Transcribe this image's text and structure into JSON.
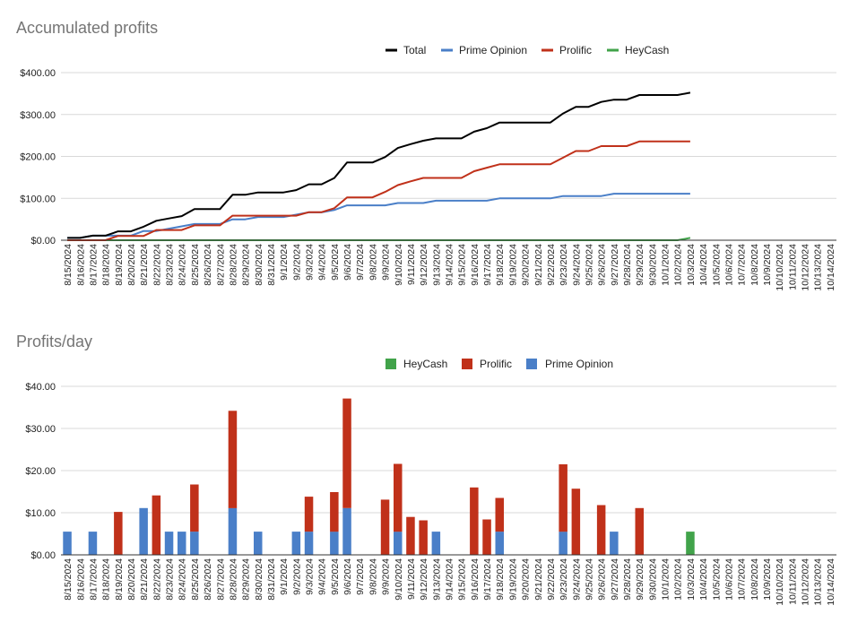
{
  "colors": {
    "total": "#000000",
    "prime": "#4a7fc8",
    "prolific": "#c0311a",
    "heycash": "#41a34a",
    "grid": "#d9d9d9",
    "axis": "#333333",
    "title": "#757575"
  },
  "dates": [
    "8/15/2024",
    "8/16/2024",
    "8/17/2024",
    "8/18/2024",
    "8/19/2024",
    "8/20/2024",
    "8/21/2024",
    "8/22/2024",
    "8/23/2024",
    "8/24/2024",
    "8/25/2024",
    "8/26/2024",
    "8/27/2024",
    "8/28/2024",
    "8/29/2024",
    "8/30/2024",
    "8/31/2024",
    "9/1/2024",
    "9/2/2024",
    "9/3/2024",
    "9/4/2024",
    "9/5/2024",
    "9/6/2024",
    "9/7/2024",
    "9/8/2024",
    "9/9/2024",
    "9/10/2024",
    "9/11/2024",
    "9/12/2024",
    "9/13/2024",
    "9/14/2024",
    "9/15/2024",
    "9/16/2024",
    "9/17/2024",
    "9/18/2024",
    "9/19/2024",
    "9/20/2024",
    "9/21/2024",
    "9/22/2024",
    "9/23/2024",
    "9/24/2024",
    "9/25/2024",
    "9/26/2024",
    "9/27/2024",
    "9/28/2024",
    "9/29/2024",
    "9/30/2024",
    "10/1/2024",
    "10/2/2024",
    "10/3/2024",
    "10/4/2024",
    "10/5/2024",
    "10/6/2024",
    "10/7/2024",
    "10/8/2024",
    "10/9/2024",
    "10/10/2024",
    "10/11/2024",
    "10/12/2024",
    "10/13/2024",
    "10/14/2024"
  ],
  "chart_data": [
    {
      "type": "line",
      "title": "Accumulated profits",
      "xlabel": "",
      "ylabel": "",
      "ylim": [
        0,
        400
      ],
      "yticks": [
        "$0.00",
        "$100.00",
        "$200.00",
        "$300.00",
        "$400.00"
      ],
      "grid": true,
      "legend_position": "top",
      "legend": [
        "Total",
        "Prime Opinion",
        "Prolific",
        "HeyCash"
      ],
      "series": [
        {
          "name": "Total",
          "color": "#000000",
          "values": [
            5.5,
            5.5,
            11,
            11,
            21.2,
            21.2,
            32.3,
            46.4,
            52,
            57.6,
            74.3,
            74.3,
            74.3,
            108.5,
            108.5,
            114.1,
            114.1,
            114.1,
            119.6,
            133.4,
            133.4,
            148.4,
            185.5,
            185.5,
            185.5,
            198.6,
            220.2,
            229.2,
            237.4,
            243,
            243,
            243,
            259,
            267.4,
            280.9,
            280.9,
            280.9,
            280.9,
            280.9,
            302.5,
            318.2,
            318.2,
            330,
            335.5,
            335.5,
            346.6,
            346.6,
            346.6,
            346.6,
            352.1
          ]
        },
        {
          "name": "Prime Opinion",
          "color": "#4a7fc8",
          "values": [
            5.5,
            5.5,
            11,
            11,
            11,
            11,
            22.1,
            22.1,
            27.7,
            33.2,
            38.8,
            38.8,
            38.8,
            49.9,
            49.9,
            55.4,
            55.4,
            55.4,
            61,
            66.5,
            66.5,
            72.1,
            83.2,
            83.2,
            83.2,
            83.2,
            88.7,
            88.7,
            88.7,
            94.3,
            94.3,
            94.3,
            94.3,
            94.3,
            99.8,
            99.8,
            99.8,
            99.8,
            99.8,
            105.4,
            105.4,
            105.4,
            105.4,
            111,
            111,
            111,
            111,
            111,
            111,
            111
          ]
        },
        {
          "name": "Prolific",
          "color": "#c0311a",
          "values": [
            0,
            0,
            0,
            0,
            10.2,
            10.2,
            10.2,
            24.3,
            24.3,
            24.3,
            35.5,
            35.5,
            35.5,
            58.6,
            58.6,
            58.6,
            58.6,
            58.6,
            58.6,
            66.9,
            66.9,
            76.3,
            102.3,
            102.3,
            102.3,
            115.4,
            131.5,
            140.5,
            148.7,
            148.7,
            148.7,
            148.7,
            164.7,
            173.1,
            181.1,
            181.1,
            181.1,
            181.1,
            181.1,
            197.1,
            212.8,
            212.8,
            224.6,
            224.6,
            224.6,
            235.7,
            235.7,
            235.7,
            235.7,
            235.7
          ]
        },
        {
          "name": "HeyCash",
          "color": "#41a34a",
          "values": [
            0,
            0,
            0,
            0,
            0,
            0,
            0,
            0,
            0,
            0,
            0,
            0,
            0,
            0,
            0,
            0,
            0,
            0,
            0,
            0,
            0,
            0,
            0,
            0,
            0,
            0,
            0,
            0,
            0,
            0,
            0,
            0,
            0,
            0,
            0,
            0,
            0,
            0,
            0,
            0,
            0,
            0,
            0,
            0,
            0,
            0,
            0,
            0,
            0,
            5.5
          ]
        }
      ]
    },
    {
      "type": "bar",
      "stacked": true,
      "title": "Profits/day",
      "xlabel": "",
      "ylabel": "",
      "ylim": [
        0,
        40
      ],
      "yticks": [
        "$0.00",
        "$10.00",
        "$20.00",
        "$30.00",
        "$40.00"
      ],
      "grid": true,
      "legend_position": "top",
      "legend": [
        "HeyCash",
        "Prolific",
        "Prime Opinion"
      ],
      "series": [
        {
          "name": "Prime Opinion",
          "color": "#4a7fc8",
          "values": [
            5.5,
            0,
            5.5,
            0,
            0,
            0,
            11.1,
            0,
            5.5,
            5.5,
            5.5,
            0,
            0,
            11.1,
            0,
            5.5,
            0,
            0,
            5.5,
            5.5,
            0,
            5.5,
            11.1,
            0,
            0,
            0,
            5.5,
            0,
            0,
            5.5,
            0,
            0,
            0,
            0,
            5.5,
            0,
            0,
            0,
            0,
            5.5,
            0,
            0,
            0,
            5.5,
            0,
            0,
            0,
            0,
            0,
            0,
            0,
            0,
            0,
            0,
            0,
            0,
            0,
            0,
            0,
            0,
            0
          ]
        },
        {
          "name": "Prolific",
          "color": "#c0311a",
          "values": [
            0,
            0,
            0,
            0,
            10.2,
            0,
            0,
            14.1,
            0,
            0,
            11.2,
            0,
            0,
            23.1,
            0,
            0,
            0,
            0,
            0,
            8.3,
            0,
            9.4,
            26,
            0,
            0,
            13.1,
            16.1,
            9,
            8.2,
            0,
            0,
            0,
            16,
            8.4,
            8,
            0,
            0,
            0,
            0,
            16,
            15.7,
            0,
            11.8,
            0,
            0,
            11.1,
            0,
            0,
            0,
            0,
            0,
            0,
            0,
            0,
            0,
            0,
            0,
            0,
            0,
            0,
            0
          ]
        },
        {
          "name": "HeyCash",
          "color": "#41a34a",
          "values": [
            0,
            0,
            0,
            0,
            0,
            0,
            0,
            0,
            0,
            0,
            0,
            0,
            0,
            0,
            0,
            0,
            0,
            0,
            0,
            0,
            0,
            0,
            0,
            0,
            0,
            0,
            0,
            0,
            0,
            0,
            0,
            0,
            0,
            0,
            0,
            0,
            0,
            0,
            0,
            0,
            0,
            0,
            0,
            0,
            0,
            0,
            0,
            0,
            0,
            5.5,
            0,
            0,
            0,
            0,
            0,
            0,
            0,
            0,
            0,
            0,
            0
          ]
        }
      ]
    }
  ]
}
